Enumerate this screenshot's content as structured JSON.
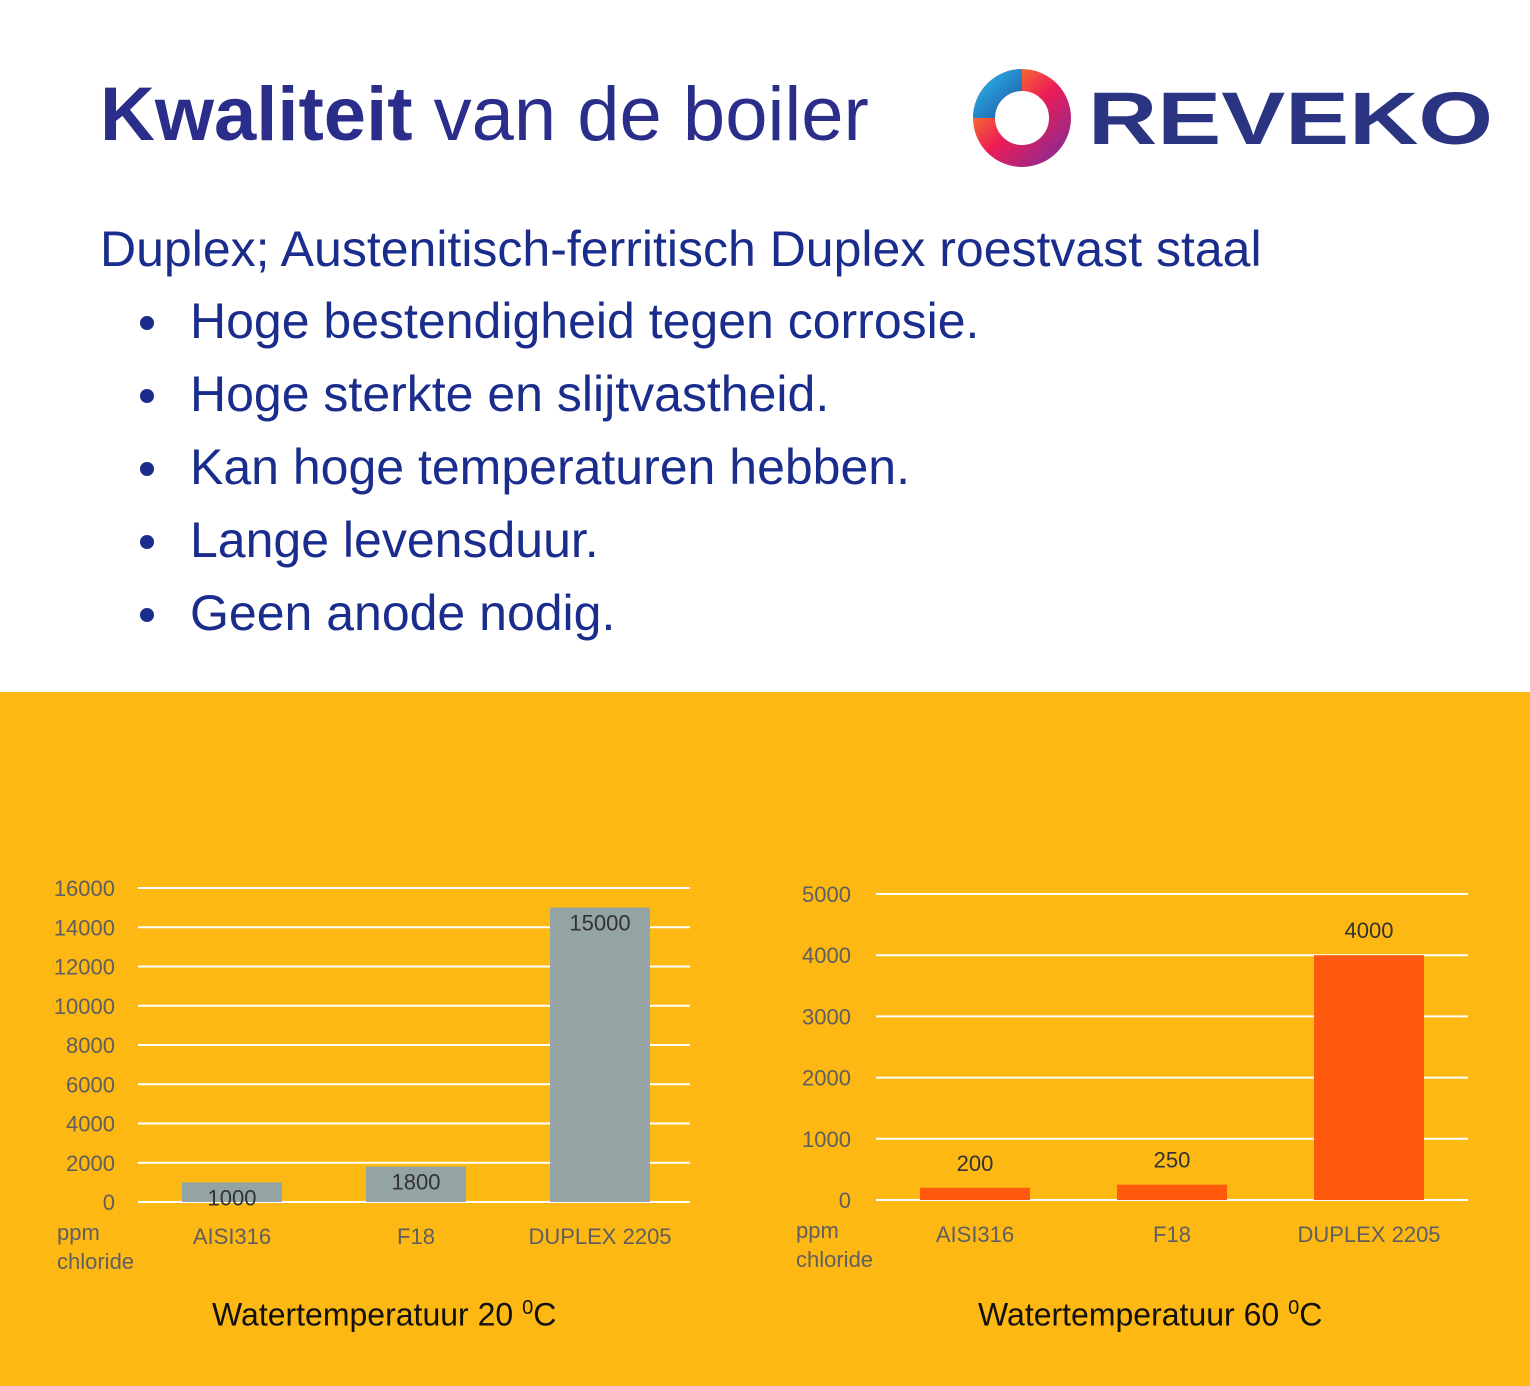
{
  "header": {
    "title_bold": "Kwaliteit",
    "title_rest": "van de boiler",
    "logo_text": "REVEKO"
  },
  "subtitle": "Duplex; Austenitisch-ferritisch Duplex roestvast staal",
  "bullets": [
    "Hoge bestendigheid tegen corrosie.",
    "Hoge sterkte en slijtvastheid.",
    "Kan hoge temperaturen hebben.",
    "Lange levensduur.",
    "Geen anode nodig."
  ],
  "colors": {
    "title": "#2b2d8a",
    "text": "#1a2d8c",
    "panel": "#fdb813",
    "bar_left": "#94a3a4",
    "bar_right": "#ff5a0e",
    "gridline": "#ffffff"
  },
  "chart_data": [
    {
      "type": "bar",
      "categories": [
        "AISI316",
        "F18",
        "DUPLEX 2205"
      ],
      "values": [
        1000,
        1800,
        15000
      ],
      "data_labels": [
        "1000",
        "1800",
        "15000"
      ],
      "ylim": [
        0,
        16000
      ],
      "yticks": [
        0,
        2000,
        4000,
        6000,
        8000,
        10000,
        12000,
        14000,
        16000
      ],
      "ylabel_lines": [
        "ppm",
        "chloride"
      ],
      "caption": "Watertemperatuur 20",
      "caption_sup": "0",
      "caption_unit": "C",
      "grid": true,
      "color": "#94a3a4"
    },
    {
      "type": "bar",
      "categories": [
        "AISI316",
        "F18",
        "DUPLEX 2205"
      ],
      "values": [
        200,
        250,
        4000
      ],
      "data_labels": [
        "200",
        "250",
        "4000"
      ],
      "ylim": [
        0,
        5000
      ],
      "yticks": [
        0,
        1000,
        2000,
        3000,
        4000,
        5000
      ],
      "ylabel_lines": [
        "ppm",
        "chloride"
      ],
      "caption": "Watertemperatuur 60",
      "caption_sup": "0",
      "caption_unit": "C",
      "grid": true,
      "color": "#ff5a0e"
    }
  ]
}
